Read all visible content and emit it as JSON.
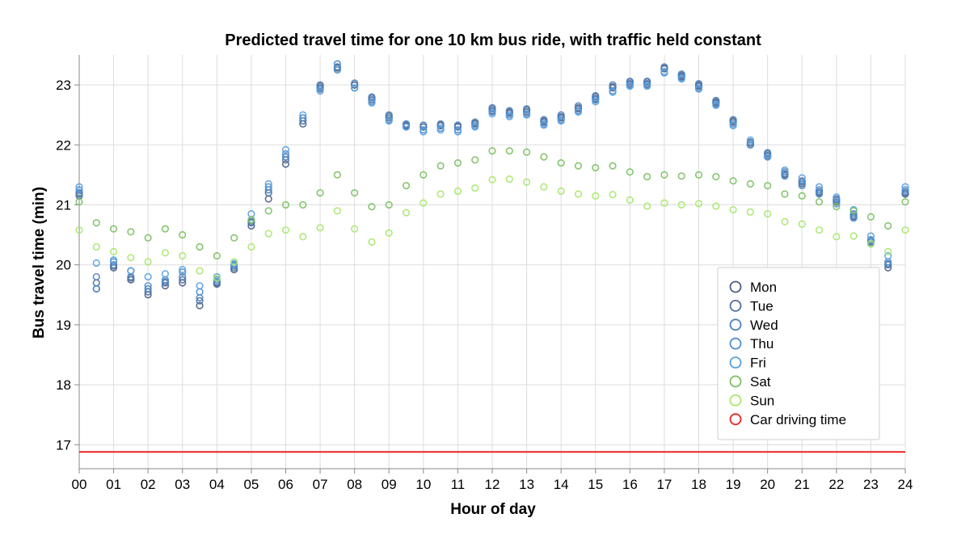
{
  "chart_data": {
    "type": "scatter",
    "title": "Predicted travel time for one 10 km bus ride, with traffic held constant",
    "xlabel": "Hour of day",
    "ylabel": "Bus travel time (min)",
    "xlim": [
      0,
      24
    ],
    "ylim": [
      16.6,
      23.5
    ],
    "grid": true,
    "legend_position": "right",
    "x_ticks": [
      0,
      1,
      2,
      3,
      4,
      5,
      6,
      7,
      8,
      9,
      10,
      11,
      12,
      13,
      14,
      15,
      16,
      17,
      18,
      19,
      20,
      21,
      22,
      23,
      24
    ],
    "x_tick_labels": [
      "00",
      "01",
      "02",
      "03",
      "04",
      "05",
      "06",
      "07",
      "08",
      "09",
      "10",
      "11",
      "12",
      "13",
      "14",
      "15",
      "16",
      "17",
      "18",
      "19",
      "20",
      "21",
      "22",
      "23",
      "24"
    ],
    "y_ticks": [
      17,
      18,
      19,
      20,
      21,
      22,
      23
    ],
    "y_tick_labels": [
      "17",
      "18",
      "19",
      "20",
      "21",
      "22",
      "23"
    ],
    "x": [
      0,
      0.5,
      1,
      1.5,
      2,
      2.5,
      3,
      3.5,
      4,
      4.5,
      5,
      5.5,
      6,
      6.5,
      7,
      7.5,
      8,
      8.5,
      9,
      9.5,
      10,
      10.5,
      11,
      11.5,
      12,
      12.5,
      13,
      13.5,
      14,
      14.5,
      15,
      15.5,
      16,
      16.5,
      17,
      17.5,
      18,
      18.5,
      19,
      19.5,
      20,
      20.5,
      21,
      21.5,
      22,
      22.5,
      23,
      23.5,
      24
    ],
    "series": [
      {
        "name": "Mon",
        "color": "#4a5f87",
        "values": [
          21.15,
          19.6,
          19.95,
          19.75,
          19.5,
          19.65,
          19.7,
          19.32,
          19.68,
          19.92,
          20.65,
          21.1,
          21.68,
          22.35,
          22.95,
          23.3,
          23.0,
          22.75,
          22.45,
          22.32,
          22.3,
          22.32,
          22.3,
          22.35,
          22.57,
          22.53,
          22.55,
          22.38,
          22.45,
          22.6,
          22.77,
          22.95,
          23.02,
          23.02,
          23.27,
          23.14,
          22.98,
          22.7,
          22.38,
          22.0,
          21.82,
          21.5,
          21.35,
          21.2,
          21.05,
          20.8,
          20.35,
          19.95,
          21.18
        ]
      },
      {
        "name": "Tue",
        "color": "#50709c",
        "values": [
          21.2,
          19.7,
          19.98,
          19.78,
          19.55,
          19.7,
          19.75,
          19.4,
          19.7,
          19.95,
          20.7,
          21.2,
          21.75,
          22.4,
          22.98,
          23.28,
          23.0,
          22.78,
          22.48,
          22.33,
          22.3,
          22.33,
          22.31,
          22.36,
          22.6,
          22.55,
          22.58,
          22.4,
          22.47,
          22.62,
          22.8,
          22.97,
          23.05,
          23.05,
          23.28,
          23.16,
          23.0,
          22.72,
          22.4,
          22.03,
          21.85,
          21.52,
          21.38,
          21.22,
          21.08,
          20.82,
          20.38,
          20.0,
          21.2
        ]
      },
      {
        "name": "Wed",
        "color": "#4f7fb8",
        "values": [
          21.18,
          19.8,
          20.0,
          19.8,
          19.6,
          19.72,
          19.8,
          19.45,
          19.72,
          19.98,
          20.72,
          21.25,
          21.8,
          22.45,
          23.0,
          23.35,
          23.03,
          22.8,
          22.5,
          22.35,
          22.33,
          22.35,
          22.33,
          22.38,
          22.62,
          22.57,
          22.6,
          22.42,
          22.5,
          22.65,
          22.82,
          23.0,
          23.06,
          23.06,
          23.3,
          23.18,
          23.02,
          22.74,
          22.42,
          22.05,
          21.87,
          21.55,
          21.4,
          21.25,
          21.1,
          20.85,
          20.4,
          20.02,
          21.22
        ]
      },
      {
        "name": "Thu",
        "color": "#4c8ed0",
        "values": [
          21.25,
          19.6,
          20.05,
          19.9,
          19.65,
          19.75,
          19.88,
          19.55,
          19.75,
          20.0,
          20.75,
          21.3,
          21.85,
          22.45,
          22.93,
          23.25,
          22.95,
          22.72,
          22.42,
          22.3,
          22.25,
          22.28,
          22.25,
          22.32,
          22.55,
          22.5,
          22.52,
          22.35,
          22.42,
          22.57,
          22.75,
          22.9,
          23.0,
          23.0,
          23.22,
          23.12,
          22.95,
          22.68,
          22.35,
          22.0,
          21.8,
          21.48,
          21.32,
          21.18,
          21.02,
          20.78,
          20.42,
          20.05,
          21.25
        ]
      },
      {
        "name": "Fri",
        "color": "#5aa0e0",
        "values": [
          21.3,
          20.03,
          20.08,
          19.9,
          19.8,
          19.85,
          19.92,
          19.65,
          19.8,
          20.02,
          20.85,
          21.35,
          21.92,
          22.5,
          22.9,
          23.35,
          22.95,
          22.7,
          22.4,
          22.3,
          22.22,
          22.25,
          22.22,
          22.3,
          22.52,
          22.47,
          22.5,
          22.33,
          22.4,
          22.55,
          22.72,
          22.88,
          22.98,
          22.98,
          23.2,
          23.1,
          22.93,
          22.66,
          22.32,
          22.08,
          21.8,
          21.58,
          21.45,
          21.3,
          21.13,
          20.92,
          20.48,
          20.15,
          21.3
        ]
      },
      {
        "name": "Sat",
        "color": "#78c060",
        "values": [
          21.05,
          20.7,
          20.6,
          20.55,
          20.45,
          20.6,
          20.5,
          20.3,
          20.15,
          20.45,
          20.75,
          20.9,
          21.0,
          21.0,
          21.2,
          21.5,
          21.2,
          20.97,
          21.0,
          21.32,
          21.5,
          21.65,
          21.7,
          21.75,
          21.9,
          21.9,
          21.88,
          21.8,
          21.7,
          21.65,
          21.62,
          21.65,
          21.55,
          21.47,
          21.5,
          21.48,
          21.5,
          21.47,
          21.4,
          21.35,
          21.32,
          21.18,
          21.15,
          21.05,
          20.97,
          20.9,
          20.8,
          20.65,
          21.05
        ]
      },
      {
        "name": "Sun",
        "color": "#a6e86c",
        "values": [
          20.58,
          20.3,
          20.22,
          20.12,
          20.05,
          20.2,
          20.15,
          19.9,
          19.78,
          20.05,
          20.3,
          20.52,
          20.58,
          20.47,
          20.62,
          20.9,
          20.6,
          20.38,
          20.53,
          20.87,
          21.03,
          21.18,
          21.23,
          21.28,
          21.42,
          21.43,
          21.38,
          21.3,
          21.23,
          21.18,
          21.15,
          21.17,
          21.08,
          20.98,
          21.03,
          21.0,
          21.02,
          20.98,
          20.92,
          20.88,
          20.85,
          20.72,
          20.68,
          20.58,
          20.47,
          20.48,
          20.35,
          20.22,
          20.58
        ]
      },
      {
        "name": "Car driving time",
        "color": "#ee2222",
        "type": "hline",
        "value": 16.88
      }
    ]
  }
}
